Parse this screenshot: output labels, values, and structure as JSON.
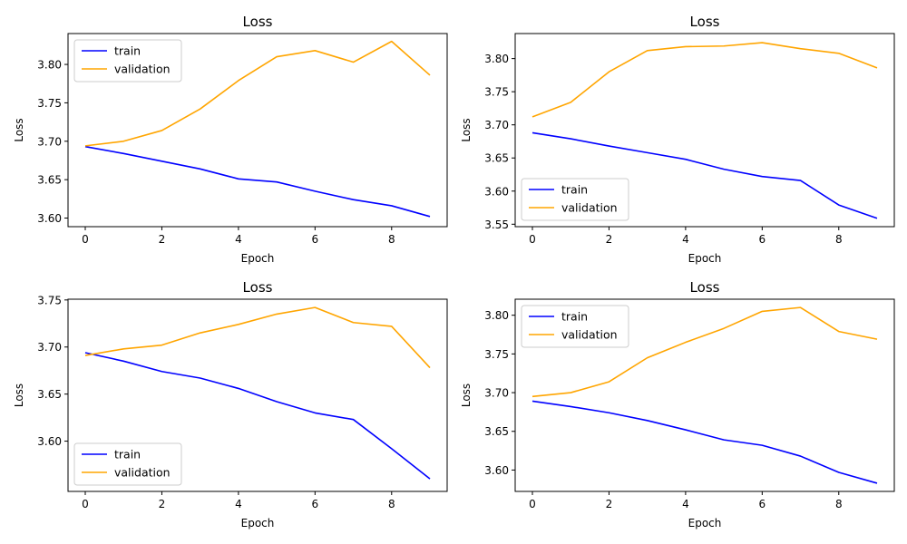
{
  "chart_data": [
    {
      "type": "line",
      "title": "Loss",
      "xlabel": "Epoch",
      "ylabel": "Loss",
      "x": [
        0,
        1,
        2,
        3,
        4,
        5,
        6,
        7,
        8,
        9
      ],
      "xlim": [
        -0.45,
        9.45
      ],
      "ylim": [
        3.5888,
        3.8402
      ],
      "xticks": [
        0,
        2,
        4,
        6,
        8
      ],
      "yticks": [
        3.6,
        3.65,
        3.7,
        3.75,
        3.8
      ],
      "legend": "upper left",
      "series": [
        {
          "name": "train",
          "color": "#0000ff",
          "values": [
            3.693,
            3.684,
            3.674,
            3.664,
            3.651,
            3.647,
            3.635,
            3.624,
            3.616,
            3.602
          ]
        },
        {
          "name": "validation",
          "color": "#ffa500",
          "values": [
            3.694,
            3.7,
            3.714,
            3.742,
            3.779,
            3.81,
            3.818,
            3.803,
            3.83,
            3.786
          ]
        }
      ]
    },
    {
      "type": "line",
      "title": "Loss",
      "xlabel": "Epoch",
      "ylabel": "Loss",
      "x": [
        0,
        1,
        2,
        3,
        4,
        5,
        6,
        7,
        8,
        9
      ],
      "xlim": [
        -0.45,
        9.45
      ],
      "ylim": [
        3.5463,
        3.8378
      ],
      "xticks": [
        0,
        2,
        4,
        6,
        8
      ],
      "yticks": [
        3.55,
        3.6,
        3.65,
        3.7,
        3.75,
        3.8
      ],
      "legend": "lower left",
      "series": [
        {
          "name": "train",
          "color": "#0000ff",
          "values": [
            3.688,
            3.679,
            3.668,
            3.658,
            3.648,
            3.633,
            3.622,
            3.616,
            3.579,
            3.559
          ]
        },
        {
          "name": "validation",
          "color": "#ffa500",
          "values": [
            3.712,
            3.734,
            3.78,
            3.812,
            3.818,
            3.819,
            3.824,
            3.815,
            3.808,
            3.786
          ]
        }
      ]
    },
    {
      "type": "line",
      "title": "Loss",
      "xlabel": "Epoch",
      "ylabel": "Loss",
      "x": [
        0,
        1,
        2,
        3,
        4,
        5,
        6,
        7,
        8,
        9
      ],
      "xlim": [
        -0.45,
        9.45
      ],
      "ylim": [
        3.5466,
        3.7508
      ],
      "xticks": [
        0,
        2,
        4,
        6,
        8
      ],
      "yticks": [
        3.6,
        3.65,
        3.7,
        3.75
      ],
      "legend": "lower left",
      "series": [
        {
          "name": "train",
          "color": "#0000ff",
          "values": [
            3.694,
            3.685,
            3.674,
            3.667,
            3.656,
            3.642,
            3.63,
            3.623,
            3.592,
            3.56
          ]
        },
        {
          "name": "validation",
          "color": "#ffa500",
          "values": [
            3.691,
            3.698,
            3.702,
            3.715,
            3.724,
            3.735,
            3.742,
            3.726,
            3.722,
            3.678
          ]
        }
      ]
    },
    {
      "type": "line",
      "title": "Loss",
      "xlabel": "Epoch",
      "ylabel": "Loss",
      "x": [
        0,
        1,
        2,
        3,
        4,
        5,
        6,
        7,
        8,
        9
      ],
      "xlim": [
        -0.45,
        9.45
      ],
      "ylim": [
        3.5724,
        3.8207
      ],
      "xticks": [
        0,
        2,
        4,
        6,
        8
      ],
      "yticks": [
        3.6,
        3.65,
        3.7,
        3.75,
        3.8
      ],
      "legend": "upper left",
      "series": [
        {
          "name": "train",
          "color": "#0000ff",
          "values": [
            3.689,
            3.682,
            3.674,
            3.664,
            3.652,
            3.639,
            3.632,
            3.618,
            3.597,
            3.583
          ]
        },
        {
          "name": "validation",
          "color": "#ffa500",
          "values": [
            3.695,
            3.7,
            3.714,
            3.745,
            3.765,
            3.783,
            3.805,
            3.81,
            3.779,
            3.769
          ]
        }
      ]
    }
  ]
}
